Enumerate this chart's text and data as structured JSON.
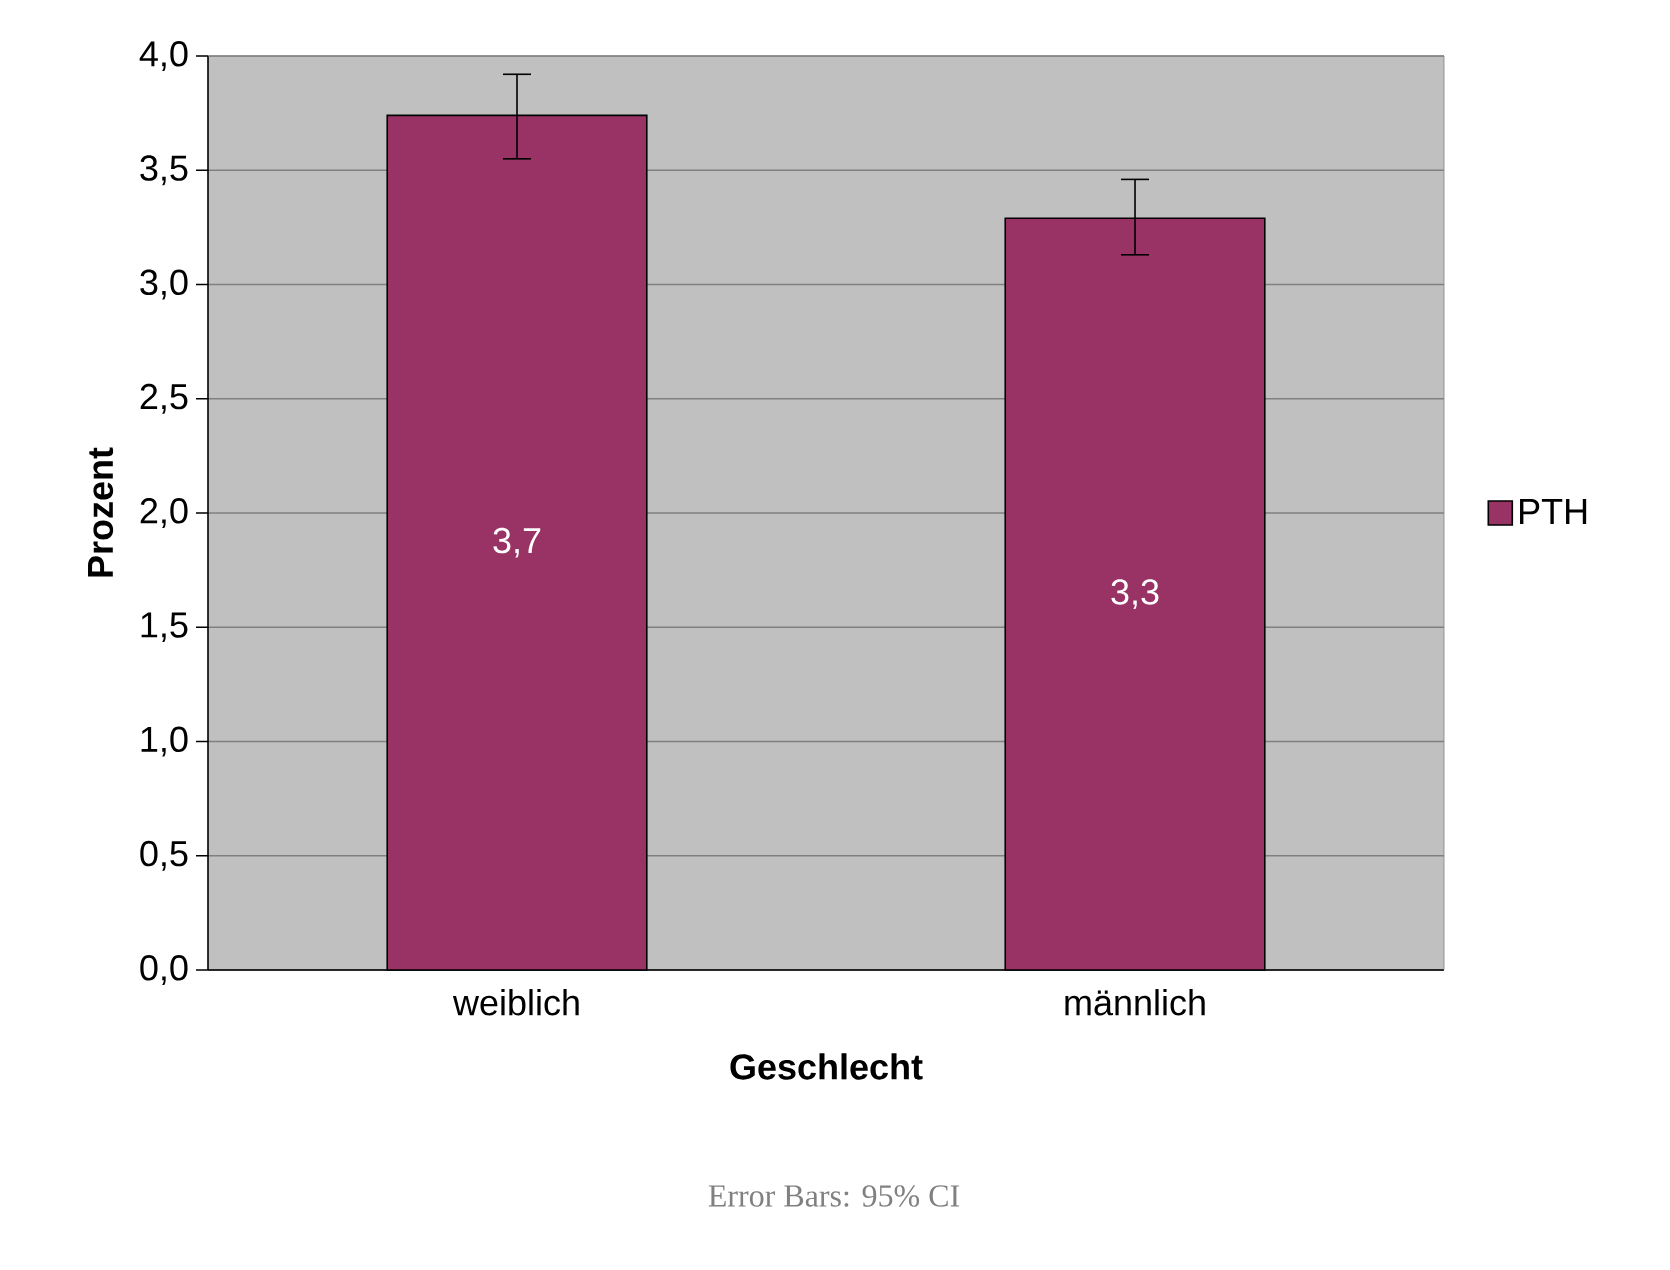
{
  "chart_data": {
    "type": "bar",
    "xlabel": "Geschlecht",
    "ylabel": "Prozent",
    "categories": [
      "weiblich",
      "männlich"
    ],
    "series": [
      {
        "name": "PTH",
        "color": "#993366",
        "values": [
          3.74,
          3.29
        ],
        "errors": [
          [
            3.55,
            3.92
          ],
          [
            3.13,
            3.46
          ]
        ],
        "value_labels": [
          "3,7",
          "3,3"
        ]
      }
    ],
    "ylim": [
      0,
      4
    ],
    "yticks": [
      {
        "value": 0,
        "label": "0,0"
      },
      {
        "value": 0.5,
        "label": "0,5"
      },
      {
        "value": 1,
        "label": "1,0"
      },
      {
        "value": 1.5,
        "label": "1,5"
      },
      {
        "value": 2,
        "label": "2,0"
      },
      {
        "value": 2.5,
        "label": "2,5"
      },
      {
        "value": 3,
        "label": "3,0"
      },
      {
        "value": 3.5,
        "label": "3,5"
      },
      {
        "value": 4,
        "label": "4,0"
      }
    ],
    "grid": "y",
    "legend": "right",
    "annotations": [
      "Error Bars: 95% CI"
    ]
  }
}
